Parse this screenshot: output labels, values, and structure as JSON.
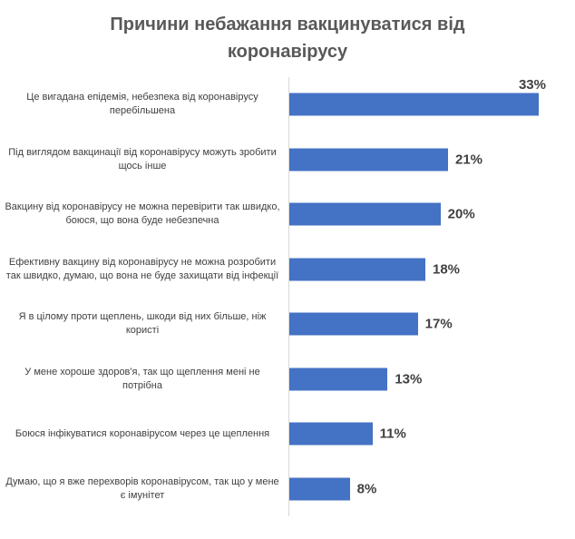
{
  "chart_data": {
    "type": "bar",
    "orientation": "horizontal",
    "title": "Причини небажання вакцинуватися від коронавірусу",
    "categories": [
      "Це вигадана епідемія, небезпека від коронавірусу перебільшена",
      "Під виглядом вакцинації від коронавірусу можуть зробити щось інше",
      "Вакцину від коронавірусу не можна перевірити так швидко, боюся, що вона буде небезпечна",
      "Ефективну вакцину від коронавірусу не можна розробити так швидко, думаю, що вона не буде захищати від інфекції",
      "Я в цілому проти щеплень, шкоди від них більше, ніж користі",
      "У мене хороше здоров'я, так що щеплення мені не потрібна",
      "Боюся інфікуватися коронавірусом через це щеплення",
      "Думаю, що я вже перехворів коронавірусом, так що у мене є імунітет"
    ],
    "values": [
      33,
      21,
      20,
      18,
      17,
      13,
      11,
      8
    ],
    "data_labels": [
      "33%",
      "21%",
      "20%",
      "18%",
      "17%",
      "13%",
      "11%",
      "8%"
    ],
    "xlim": [
      0,
      37.8
    ],
    "ylabel": "",
    "xlabel": "",
    "grid": "off",
    "legend": "none",
    "colors": {
      "bar": "#4472C4",
      "title": "#595959",
      "text": "#404040",
      "axis_line": "#D9D9D9"
    }
  }
}
